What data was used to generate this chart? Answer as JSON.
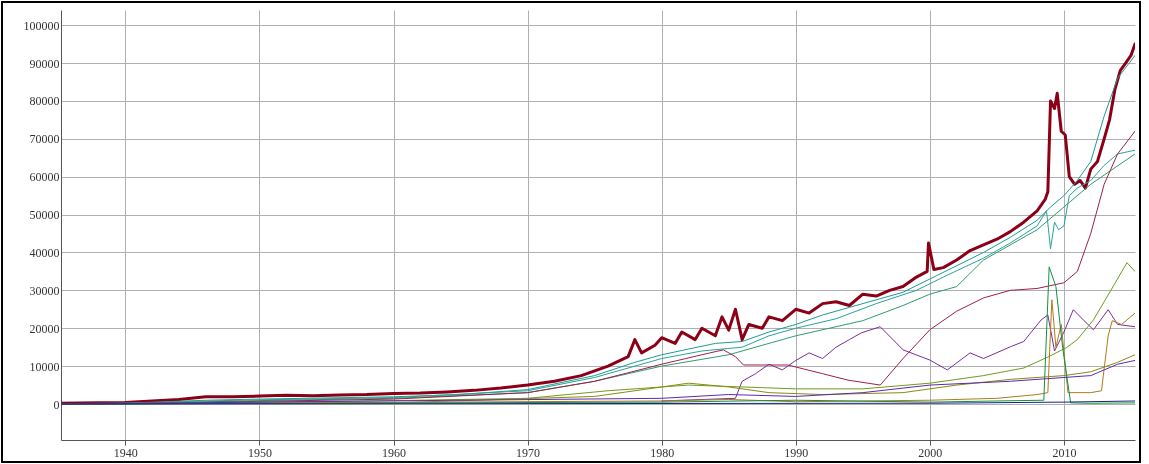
{
  "chart_data": {
    "type": "line",
    "xlim": [
      1935.2,
      2015.3
    ],
    "ylim": [
      -9500,
      104000
    ],
    "xticks": [
      1940,
      1950,
      1960,
      1970,
      1980,
      1990,
      2000,
      2010
    ],
    "yticks": [
      0,
      10000,
      20000,
      30000,
      40000,
      50000,
      60000,
      70000,
      80000,
      90000,
      100000
    ],
    "grid": true,
    "series": [
      {
        "color": "#8b0016",
        "x": [
          1935.2,
          1938,
          1940,
          1942,
          1944,
          1946,
          1948,
          1950,
          1952,
          1954,
          1956,
          1958,
          1960,
          1962,
          1964,
          1966,
          1968,
          1970,
          1972,
          1974,
          1976,
          1977.5,
          1978,
          1978.5,
          1979.5,
          1980,
          1981,
          1981.5,
          1982.5,
          1983,
          1984,
          1984.5,
          1985,
          1985.5,
          1986,
          1986.5,
          1987.5,
          1988,
          1989,
          1990,
          1991,
          1992,
          1993,
          1994,
          1995,
          1996,
          1997,
          1998,
          1999,
          1999.8,
          1999.9,
          2000.3,
          2001,
          2002,
          2003,
          2004,
          2005,
          2006,
          2007,
          2008,
          2008.6,
          2008.8,
          2009,
          2009.3,
          2009.5,
          2009.8,
          2010.1,
          2010.4,
          2010.8,
          2011.2,
          2011.6,
          2012,
          2012.5,
          2013,
          2013.4,
          2013.8,
          2014.2,
          2014.6,
          2015,
          2015.3
        ],
        "values": [
          200,
          300,
          400,
          800,
          1200,
          1900,
          1900,
          2100,
          2300,
          2200,
          2400,
          2500,
          2800,
          2900,
          3200,
          3600,
          4200,
          5000,
          6000,
          7500,
          10000,
          12500,
          17000,
          13500,
          15500,
          17500,
          16000,
          19000,
          17000,
          20000,
          18000,
          23000,
          19500,
          25000,
          17000,
          21000,
          20000,
          23000,
          22000,
          25000,
          24000,
          26500,
          27000,
          26000,
          29000,
          28500,
          30000,
          31000,
          33500,
          35000,
          42500,
          35500,
          36000,
          38000,
          40500,
          42000,
          43500,
          45500,
          48000,
          51000,
          54000,
          56000,
          80000,
          78000,
          82000,
          72000,
          71000,
          60000,
          58000,
          59000,
          57000,
          62000,
          64000,
          70000,
          75000,
          83000,
          88000,
          90000,
          92000,
          95000
        ]
      },
      {
        "color": "#1f9a94",
        "x": [
          1935.2,
          1940,
          1946,
          1950,
          1960,
          1965,
          1970,
          1975,
          1978,
          1980,
          1982,
          1984,
          1986,
          1988,
          1990,
          1992,
          1994,
          1996,
          1998,
          2000,
          2002,
          2004,
          2006,
          2008,
          2009,
          2010,
          2011,
          2012,
          2013,
          2014,
          2015.3
        ],
        "values": [
          100,
          200,
          1000,
          1300,
          1900,
          2500,
          3800,
          7500,
          11000,
          13000,
          14500,
          16000,
          16500,
          19000,
          21000,
          23500,
          25500,
          27500,
          29500,
          33000,
          36500,
          40000,
          44000,
          48500,
          52000,
          55000,
          59000,
          64000,
          76000,
          86000,
          92000
        ]
      },
      {
        "color": "#2aa39a",
        "x": [
          1935.2,
          1940,
          1946,
          1950,
          1960,
          1970,
          1975,
          1980,
          1983,
          1986,
          1988,
          1990,
          1993,
          1996,
          1999,
          2001,
          2004,
          2006,
          2008,
          2008.7,
          2009,
          2009.3,
          2009.6,
          2010,
          2010.4,
          2011,
          2012,
          2013,
          2014,
          2015.3
        ],
        "values": [
          100,
          200,
          800,
          1100,
          1700,
          3500,
          7000,
          12000,
          14000,
          15000,
          18000,
          20000,
          22500,
          26500,
          30000,
          33500,
          38500,
          42500,
          47000,
          51000,
          41000,
          48000,
          46000,
          47000,
          55000,
          57000,
          59000,
          63000,
          66000,
          67000
        ]
      },
      {
        "color": "#2e9e6a",
        "x": [
          1935.2,
          1940,
          1950,
          1960,
          1970,
          1975,
          1980,
          1985,
          1990,
          1995,
          1998,
          2000,
          2002,
          2004,
          2008,
          2012,
          2015.3
        ],
        "values": [
          0,
          100,
          900,
          1500,
          3000,
          6000,
          10000,
          13000,
          18000,
          22000,
          26000,
          29000,
          31000,
          38000,
          46000,
          58000,
          66000
        ]
      },
      {
        "color": "#9e1f4f",
        "x": [
          1935.2,
          1940,
          1950,
          1960,
          1970,
          1975,
          1980,
          1983,
          1984.6,
          1985.5,
          1986.1,
          1989.4,
          1992,
          1993.9,
          1996.3,
          1998,
          2000,
          2002,
          2004,
          2006,
          2008,
          2010,
          2011,
          2012,
          2013,
          2014,
          2015.3
        ],
        "values": [
          0,
          100,
          700,
          1300,
          3000,
          6000,
          10500,
          13000,
          14300,
          12500,
          10300,
          10300,
          8000,
          6300,
          5000,
          12000,
          19600,
          24500,
          28000,
          30000,
          30500,
          32000,
          35000,
          45000,
          58000,
          66000,
          72000
        ]
      },
      {
        "color": "#7b2c9e",
        "x": [
          1980,
          1985.5,
          1986,
          1987,
          1988,
          1989,
          1990,
          1991,
          1992,
          1993,
          1994,
          1994.9,
          1996.3,
          1998,
          2000,
          2001.3,
          2003,
          2004,
          2006,
          2007,
          2008.3,
          2008.8,
          2009.3,
          2010,
          2010.7,
          2011.5,
          2012.2,
          2013.3,
          2014,
          2015.3
        ],
        "values": [
          800,
          1500,
          6000,
          8000,
          10500,
          9000,
          11500,
          13500,
          12000,
          15000,
          17000,
          18800,
          20400,
          14300,
          11600,
          9000,
          13500,
          12000,
          15100,
          16500,
          22200,
          23500,
          14000,
          19000,
          24900,
          22000,
          19600,
          24900,
          21000,
          20400
        ]
      },
      {
        "color": "#6e9c1e",
        "x": [
          1935.2,
          1950,
          1960,
          1970,
          1976,
          1982,
          1986,
          1990,
          1995,
          2000,
          2004,
          2007,
          2008.8,
          2010.2,
          2011,
          2012.2,
          2013.5,
          2014.7,
          2015.3
        ],
        "values": [
          0,
          500,
          900,
          1500,
          3500,
          5000,
          4500,
          4000,
          4000,
          5500,
          7500,
          9500,
          12400,
          14900,
          17000,
          22200,
          30000,
          37300,
          35000
        ]
      },
      {
        "color": "#8a8a10",
        "x": [
          1935.2,
          1960,
          1975,
          1980,
          1982,
          1985,
          1988,
          1992,
          1998,
          2002,
          2006,
          2010,
          2012,
          2014,
          2015.3
        ],
        "values": [
          0,
          300,
          2000,
          4500,
          5500,
          4500,
          3000,
          2500,
          3000,
          5000,
          6500,
          7500,
          8500,
          11000,
          13000
        ]
      },
      {
        "color": "#b07a1c",
        "x": [
          1935.2,
          1980,
          1985,
          1990,
          1995,
          2000,
          2005,
          2008,
          2008.8,
          2009.1,
          2009.4,
          2009.8,
          2010.3,
          2012,
          2012.8,
          2013.3,
          2013.6,
          2014.3,
          2015.3
        ],
        "values": [
          0,
          800,
          1200,
          600,
          800,
          1000,
          1500,
          2500,
          3000,
          27500,
          15000,
          21000,
          3000,
          3000,
          3500,
          18000,
          22000,
          21000,
          24000
        ]
      },
      {
        "color": "#139040",
        "x": [
          1935.2,
          1980,
          1990,
          2000,
          2005,
          2008.5,
          2008.9,
          2009.4,
          2009.9,
          2010.5,
          2012,
          2015.3
        ],
        "values": [
          0,
          500,
          1000,
          500,
          800,
          1000,
          36200,
          31000,
          15000,
          300,
          200,
          300
        ]
      },
      {
        "color": "#5b2ab0",
        "x": [
          1935.2,
          1980,
          1985,
          1990,
          1995,
          2000,
          2003,
          2006,
          2008,
          2010,
          2012,
          2013,
          2014,
          2015.3
        ],
        "values": [
          0,
          1500,
          2500,
          2000,
          3000,
          5000,
          5500,
          6000,
          6500,
          7000,
          7500,
          9000,
          10500,
          11500
        ]
      },
      {
        "color": "#1a237e",
        "x": [
          1935.2,
          2000,
          2010,
          2015.3
        ],
        "values": [
          0,
          200,
          500,
          800
        ]
      }
    ]
  }
}
